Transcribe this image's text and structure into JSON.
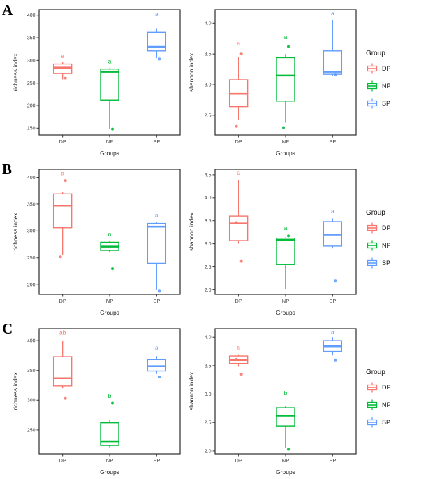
{
  "palette": {
    "DP": "#F8766D",
    "NP": "#00BA38",
    "SP": "#619CFF"
  },
  "axis_color": "#333333",
  "figure": {
    "panels": [
      {
        "label": "A"
      },
      {
        "label": "B"
      },
      {
        "label": "C"
      }
    ],
    "legend": {
      "title": "Group",
      "items": [
        {
          "label": "DP",
          "color": "#F8766D"
        },
        {
          "label": "NP",
          "color": "#00BA38"
        },
        {
          "label": "SP",
          "color": "#619CFF"
        }
      ]
    }
  },
  "chart_data": [
    {
      "type": "boxplot",
      "panel": "A",
      "ylabel": "richness index",
      "xlabel": "Groups",
      "groups": [
        "DP",
        "NP",
        "SP"
      ],
      "ylim": [
        135,
        412
      ],
      "yticks": [
        150,
        200,
        250,
        300,
        350,
        400
      ],
      "ytick_labels": [
        "150",
        "200",
        "250",
        "300",
        "350",
        "400"
      ],
      "boxes": [
        {
          "group": "DP",
          "whisker_low": 258,
          "q1": 271,
          "median": 284,
          "q3": 292,
          "whisker_high": 296,
          "points": [
            261
          ],
          "sig": "a",
          "sig_y": 305
        },
        {
          "group": "NP",
          "whisker_low": 148,
          "q1": 212,
          "median": 275,
          "q3": 281,
          "whisker_high": 283,
          "points": [
            148
          ],
          "sig": "a",
          "sig_y": 294
        },
        {
          "group": "SP",
          "whisker_low": 305,
          "q1": 321,
          "median": 330,
          "q3": 362,
          "whisker_high": 371,
          "points": [
            303
          ],
          "sig": "a",
          "sig_y": 398
        }
      ]
    },
    {
      "type": "boxplot",
      "panel": "A",
      "ylabel": "shannon index",
      "xlabel": "Groups",
      "groups": [
        "DP",
        "NP",
        "SP"
      ],
      "ylim": [
        2.18,
        4.22
      ],
      "yticks": [
        2.5,
        3.0,
        3.5,
        4.0
      ],
      "ytick_labels": [
        "2.5",
        "3.0",
        "3.5",
        "4.0"
      ],
      "boxes": [
        {
          "group": "DP",
          "whisker_low": 2.42,
          "q1": 2.64,
          "median": 2.85,
          "q3": 3.08,
          "whisker_high": 3.45,
          "points": [
            3.5,
            2.32
          ],
          "sig": "a",
          "sig_y": 3.64
        },
        {
          "group": "NP",
          "whisker_low": 2.38,
          "q1": 2.73,
          "median": 3.15,
          "q3": 3.44,
          "whisker_high": 3.5,
          "points": [
            3.62,
            2.3
          ],
          "sig": "a",
          "sig_y": 3.74
        },
        {
          "group": "SP",
          "whisker_low": 3.14,
          "q1": 3.17,
          "median": 3.21,
          "q3": 3.55,
          "whisker_high": 4.05,
          "points": [
            3.16
          ],
          "sig": "a",
          "sig_y": 4.13
        }
      ]
    },
    {
      "type": "boxplot",
      "panel": "B",
      "ylabel": "richness index",
      "xlabel": "Groups",
      "groups": [
        "DP",
        "NP",
        "SP"
      ],
      "ylim": [
        182,
        415
      ],
      "yticks": [
        200,
        250,
        300,
        350,
        400
      ],
      "ytick_labels": [
        "200",
        "250",
        "300",
        "350",
        "400"
      ],
      "boxes": [
        {
          "group": "DP",
          "whisker_low": 256,
          "q1": 306,
          "median": 347,
          "q3": 369,
          "whisker_high": 372,
          "points": [
            394,
            252
          ],
          "sig": "a",
          "sig_y": 404
        },
        {
          "group": "NP",
          "whisker_low": 260,
          "q1": 264,
          "median": 271,
          "q3": 279,
          "whisker_high": 281,
          "points": [
            230
          ],
          "sig": "a",
          "sig_y": 291
        },
        {
          "group": "SP",
          "whisker_low": 190,
          "q1": 240,
          "median": 308,
          "q3": 314,
          "whisker_high": 316,
          "points": [
            188
          ],
          "sig": "a",
          "sig_y": 326
        }
      ]
    },
    {
      "type": "boxplot",
      "panel": "B",
      "ylabel": "shannon index",
      "xlabel": "Groups",
      "groups": [
        "DP",
        "NP",
        "SP"
      ],
      "ylim": [
        1.9,
        4.62
      ],
      "yticks": [
        2.0,
        2.5,
        3.0,
        3.5,
        4.0,
        4.5
      ],
      "ytick_labels": [
        "2.0",
        "2.5",
        "3.0",
        "3.5",
        "4.0",
        "4.5"
      ],
      "boxes": [
        {
          "group": "DP",
          "whisker_low": 3.0,
          "q1": 3.07,
          "median": 3.44,
          "q3": 3.6,
          "whisker_high": 4.38,
          "points": [
            2.62,
            3.46
          ],
          "sig": "a",
          "sig_y": 4.5
        },
        {
          "group": "NP",
          "whisker_low": 2.02,
          "q1": 2.55,
          "median": 3.08,
          "q3": 3.12,
          "whisker_high": 3.14,
          "points": [
            3.17
          ],
          "sig": "a",
          "sig_y": 3.3
        },
        {
          "group": "SP",
          "whisker_low": 2.9,
          "q1": 2.95,
          "median": 3.2,
          "q3": 3.48,
          "whisker_high": 3.55,
          "points": [
            2.2
          ],
          "sig": "a",
          "sig_y": 3.66
        }
      ]
    },
    {
      "type": "boxplot",
      "panel": "C",
      "ylabel": "richness index",
      "xlabel": "Groups",
      "groups": [
        "DP",
        "NP",
        "SP"
      ],
      "ylim": [
        210,
        420
      ],
      "yticks": [
        250,
        300,
        350,
        400
      ],
      "ytick_labels": [
        "250",
        "300",
        "350",
        "400"
      ],
      "boxes": [
        {
          "group": "DP",
          "whisker_low": 320,
          "q1": 324,
          "median": 337,
          "q3": 373,
          "whisker_high": 400,
          "points": [
            303
          ],
          "sig": "ab",
          "sig_y": 410
        },
        {
          "group": "NP",
          "whisker_low": 221,
          "q1": 224,
          "median": 231,
          "q3": 262,
          "whisker_high": 266,
          "points": [
            295
          ],
          "sig": "b",
          "sig_y": 304
        },
        {
          "group": "SP",
          "whisker_low": 344,
          "q1": 349,
          "median": 357,
          "q3": 368,
          "whisker_high": 374,
          "points": [
            339
          ],
          "sig": "a",
          "sig_y": 385
        }
      ]
    },
    {
      "type": "boxplot",
      "panel": "C",
      "ylabel": "shannon index",
      "xlabel": "Groups",
      "groups": [
        "DP",
        "NP",
        "SP"
      ],
      "ylim": [
        1.95,
        4.15
      ],
      "yticks": [
        2.0,
        2.5,
        3.0,
        3.5,
        4.0
      ],
      "ytick_labels": [
        "2.0",
        "2.5",
        "3.0",
        "3.5",
        "4.0"
      ],
      "boxes": [
        {
          "group": "DP",
          "whisker_low": 3.48,
          "q1": 3.54,
          "median": 3.6,
          "q3": 3.67,
          "whisker_high": 3.7,
          "points": [
            3.35,
            3.61
          ],
          "sig": "a",
          "sig_y": 3.79
        },
        {
          "group": "NP",
          "whisker_low": 2.06,
          "q1": 2.44,
          "median": 2.62,
          "q3": 2.76,
          "whisker_high": 2.79,
          "points": [
            2.03
          ],
          "sig": "b",
          "sig_y": 2.98
        },
        {
          "group": "SP",
          "whisker_low": 3.68,
          "q1": 3.75,
          "median": 3.84,
          "q3": 3.94,
          "whisker_high": 4.0,
          "points": [
            3.6
          ],
          "sig": "a",
          "sig_y": 4.06
        }
      ]
    }
  ]
}
